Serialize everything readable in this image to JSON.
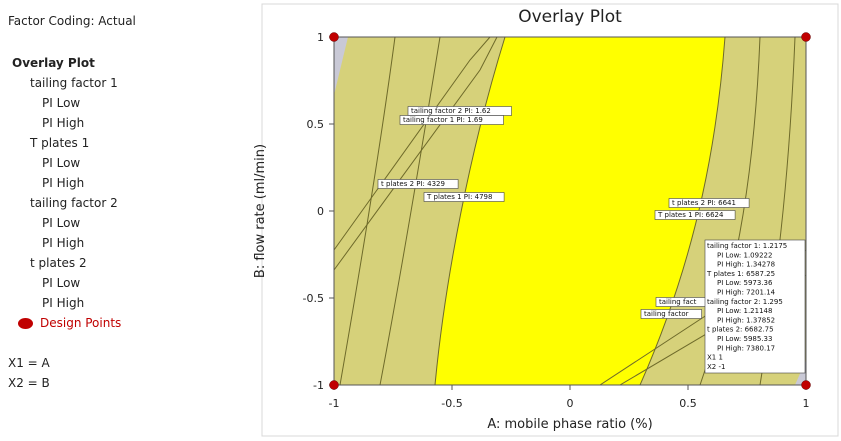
{
  "sidebar": {
    "coding": "Factor Coding: Actual",
    "heading": "Overlay Plot",
    "groups": [
      {
        "name": "tailing factor 1",
        "sub": [
          "PI Low",
          "PI High"
        ]
      },
      {
        "name": "T plates 1",
        "sub": [
          "PI Low",
          "PI High"
        ]
      },
      {
        "name": "tailing factor 2",
        "sub": [
          "PI Low",
          "PI High"
        ]
      },
      {
        "name": "t plates 2",
        "sub": [
          "PI Low",
          "PI High"
        ]
      }
    ],
    "factors": [
      "X1 = A",
      "X2 = B"
    ]
  },
  "chart_data": {
    "type": "scatter",
    "title": "Overlay Plot",
    "x_label": "A: mobile phase ratio (%)",
    "y_label": "B: flow rate (ml/min)",
    "xlim": [
      -1,
      1
    ],
    "ylim": [
      -1,
      1
    ],
    "xticks": [
      -1,
      -0.5,
      0,
      0.5,
      1
    ],
    "yticks": [
      -1,
      -0.5,
      0,
      0.5,
      1
    ],
    "series": [
      {
        "name": "Design Points",
        "color": "#c00000",
        "x": [
          -1,
          1,
          -1,
          1
        ],
        "values": [
          1,
          1,
          -1,
          -1
        ]
      }
    ],
    "annotations": [
      "tailing factor 2 PI: 1.62",
      "tailing factor 1 PI: 1.69",
      "t plates 2 PI: 4329",
      "T plates 1 PI: 4798",
      "t plates 2 PI: 6641",
      "T plates 1 PI: 6624",
      "tailing fact",
      "tailing factor"
    ],
    "tooltip": [
      "tailing factor 1:  1.2175",
      "PI Low:  1.09222",
      "PI High:  1.34278",
      "T plates 1:  6587.25",
      "PI Low:  5973.36",
      "PI High:  7201.14",
      "tailing factor 2:  1.295",
      "PI Low:  1.21148",
      "PI High:  1.37852",
      "t plates 2:  6682.75",
      "PI Low:  5985.33",
      "PI High:  7380.17",
      "X1  1",
      "X2  -1"
    ]
  }
}
